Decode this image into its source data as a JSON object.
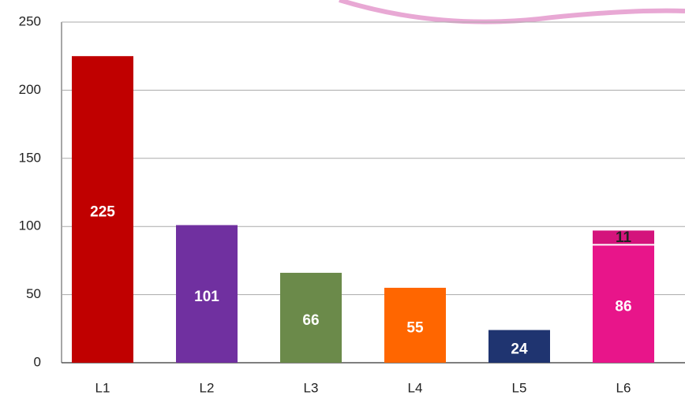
{
  "chart_data": {
    "type": "bar",
    "categories": [
      "L1",
      "L2",
      "L3",
      "L4",
      "L5",
      "L6"
    ],
    "ylim": [
      0,
      250
    ],
    "yticks": [
      0,
      50,
      100,
      150,
      200,
      250
    ],
    "grid": true,
    "series": [
      {
        "values": [
          225,
          101,
          66,
          55,
          24,
          86
        ],
        "colors": [
          "#c00000",
          "#7030a0",
          "#6b8a4a",
          "#ff6600",
          "#1f3470",
          "#e8158a"
        ],
        "label_color": "#ffffff"
      },
      {
        "values": [
          null,
          null,
          null,
          null,
          null,
          11
        ],
        "colors": [
          null,
          null,
          null,
          null,
          null,
          "#d4147c"
        ],
        "label_color": "#222222"
      }
    ]
  }
}
